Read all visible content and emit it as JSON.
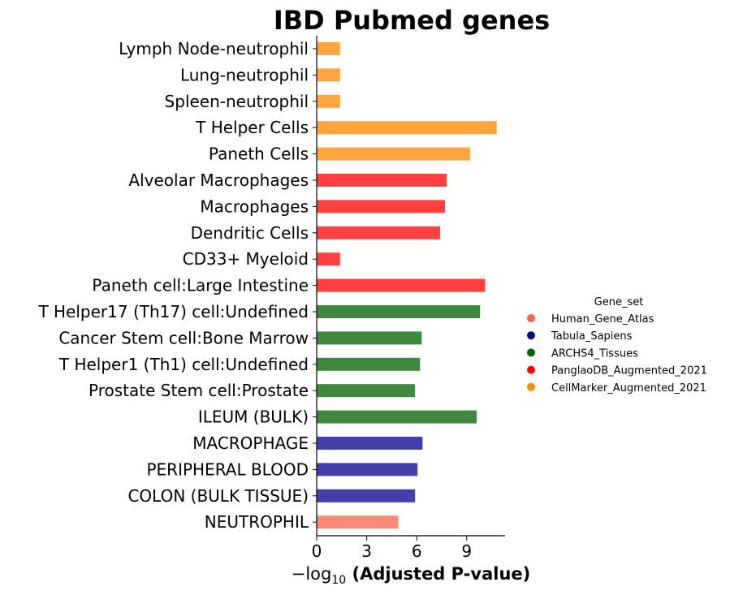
{
  "chart_data": {
    "type": "bar",
    "orientation": "horizontal",
    "title": "IBD Pubmed genes",
    "xlabel_prefix": "−log",
    "xlabel_sub": "10",
    "xlabel_main": " (Adjusted P-value)",
    "xlim": [
      0,
      11.3
    ],
    "xticks": [
      0,
      3,
      6,
      9
    ],
    "grid": false,
    "legend": {
      "title": "Gene_set",
      "placement": "right",
      "entries": [
        {
          "name": "Human_Gene_Atlas",
          "color": "#ff6347"
        },
        {
          "name": "Tabula_Sapiens",
          "color": "#000080"
        },
        {
          "name": "ARCHS4_Tissues",
          "color": "#006400"
        },
        {
          "name": "PanglaoDB_Augmented_2021",
          "color": "#ff0000"
        },
        {
          "name": "CellMarker_Augmented_2021",
          "color": "#ff8c00"
        }
      ]
    },
    "bars": [
      {
        "label": "Lymph Node-neutrophil",
        "value": 1.4,
        "gene_set": "CellMarker_Augmented_2021",
        "color": "#ffa540"
      },
      {
        "label": "Lung-neutrophil",
        "value": 1.4,
        "gene_set": "CellMarker_Augmented_2021",
        "color": "#ffa540"
      },
      {
        "label": "Spleen-neutrophil",
        "value": 1.4,
        "gene_set": "CellMarker_Augmented_2021",
        "color": "#ffa540"
      },
      {
        "label": "T Helper Cells",
        "value": 10.8,
        "gene_set": "CellMarker_Augmented_2021",
        "color": "#ffa540"
      },
      {
        "label": "Paneth Cells",
        "value": 9.2,
        "gene_set": "CellMarker_Augmented_2021",
        "color": "#ffa540"
      },
      {
        "label": "Alveolar Macrophages",
        "value": 7.8,
        "gene_set": "PanglaoDB_Augmented_2021",
        "color": "#ff4040"
      },
      {
        "label": "Macrophages",
        "value": 7.7,
        "gene_set": "PanglaoDB_Augmented_2021",
        "color": "#ff4040"
      },
      {
        "label": "Dendritic Cells",
        "value": 7.4,
        "gene_set": "PanglaoDB_Augmented_2021",
        "color": "#ff4040"
      },
      {
        "label": "CD33+ Myeloid",
        "value": 1.4,
        "gene_set": "PanglaoDB_Augmented_2021",
        "color": "#ff4040"
      },
      {
        "label": "Paneth cell:Large Intestine",
        "value": 10.1,
        "gene_set": "PanglaoDB_Augmented_2021",
        "color": "#ff4040"
      },
      {
        "label": "T Helper17 (Th17) cell:Undefined",
        "value": 9.8,
        "gene_set": "ARCHS4_Tissues",
        "color": "#40883f"
      },
      {
        "label": "Cancer Stem cell:Bone Marrow",
        "value": 6.3,
        "gene_set": "ARCHS4_Tissues",
        "color": "#40883f"
      },
      {
        "label": "T Helper1 (Th1) cell:Undefined",
        "value": 6.2,
        "gene_set": "ARCHS4_Tissues",
        "color": "#40883f"
      },
      {
        "label": "Prostate Stem cell:Prostate",
        "value": 5.9,
        "gene_set": "ARCHS4_Tissues",
        "color": "#40883f"
      },
      {
        "label": "ILEUM (BULK)",
        "value": 9.6,
        "gene_set": "ARCHS4_Tissues",
        "color": "#40883f"
      },
      {
        "label": "MACROPHAGE",
        "value": 6.35,
        "gene_set": "Tabula_Sapiens",
        "color": "#4040a8"
      },
      {
        "label": "PERIPHERAL BLOOD",
        "value": 6.05,
        "gene_set": "Tabula_Sapiens",
        "color": "#4040a8"
      },
      {
        "label": "COLON (BULK TISSUE)",
        "value": 5.9,
        "gene_set": "Tabula_Sapiens",
        "color": "#4040a8"
      },
      {
        "label": "NEUTROPHIL",
        "value": 4.9,
        "gene_set": "Human_Gene_Atlas",
        "color": "#ff8a75"
      }
    ]
  }
}
